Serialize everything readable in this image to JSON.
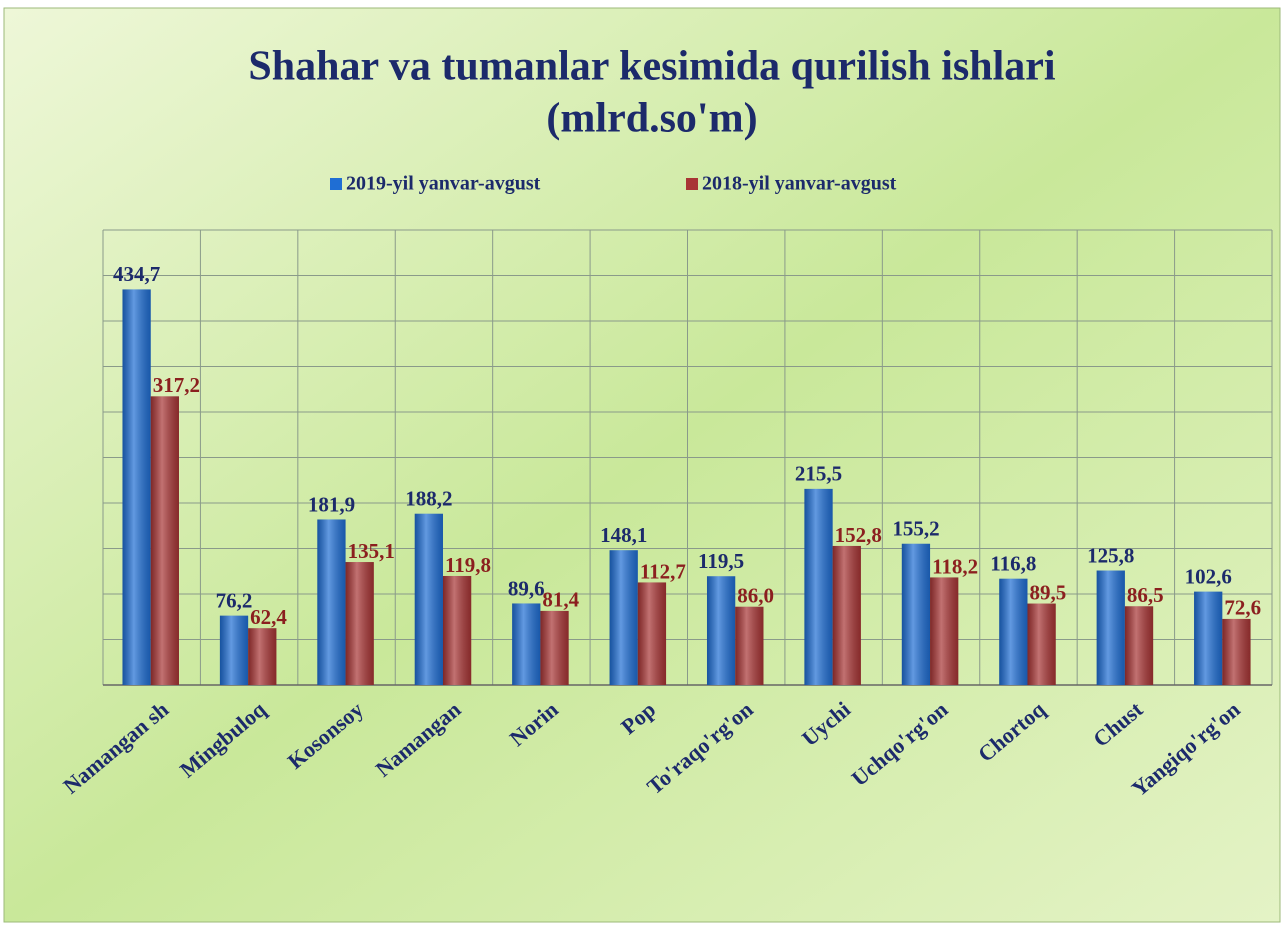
{
  "chart_data": {
    "type": "bar",
    "title": "Shahar va tumanlar kesimida qurilish ishlari",
    "subtitle": "(mlrd.so'm)",
    "categories": [
      "Namangan sh",
      "Mingbuloq",
      "Kosonsoy",
      "Namangan",
      "Norin",
      "Pop",
      "To'raqo'rg'on",
      "Uychi",
      "Uchqo'rg'on",
      "Chortoq",
      "Chust",
      "Yangiqo'rg'on"
    ],
    "series": [
      {
        "name": "2019-yil yanvar-avgust",
        "color": "#1f6ed4",
        "values": [
          434.7,
          76.2,
          181.9,
          188.2,
          89.6,
          148.1,
          119.5,
          215.5,
          155.2,
          116.8,
          125.8,
          102.6
        ],
        "value_labels": [
          "434,7",
          "76,2",
          "181,9",
          "188,2",
          "89,6",
          "148,1",
          "119,5",
          "215,5",
          "155,2",
          "116,8",
          "125,8",
          "102,6"
        ]
      },
      {
        "name": "2018-yil yanvar-avgust",
        "color": "#a83535",
        "values": [
          317.2,
          62.4,
          135.1,
          119.8,
          81.4,
          112.7,
          86.0,
          152.8,
          118.2,
          89.5,
          86.5,
          72.6
        ],
        "value_labels": [
          "317,2",
          "62,4",
          "135,1",
          "119,8",
          "81,4",
          "112,7",
          "86,0",
          "152,8",
          "118,2",
          "89,5",
          "86,5",
          "72,6"
        ]
      }
    ],
    "ylim": [
      0,
      500
    ],
    "yticks": [
      0,
      50,
      100,
      150,
      200,
      250,
      300,
      350,
      400,
      450,
      500
    ],
    "grid": true
  }
}
